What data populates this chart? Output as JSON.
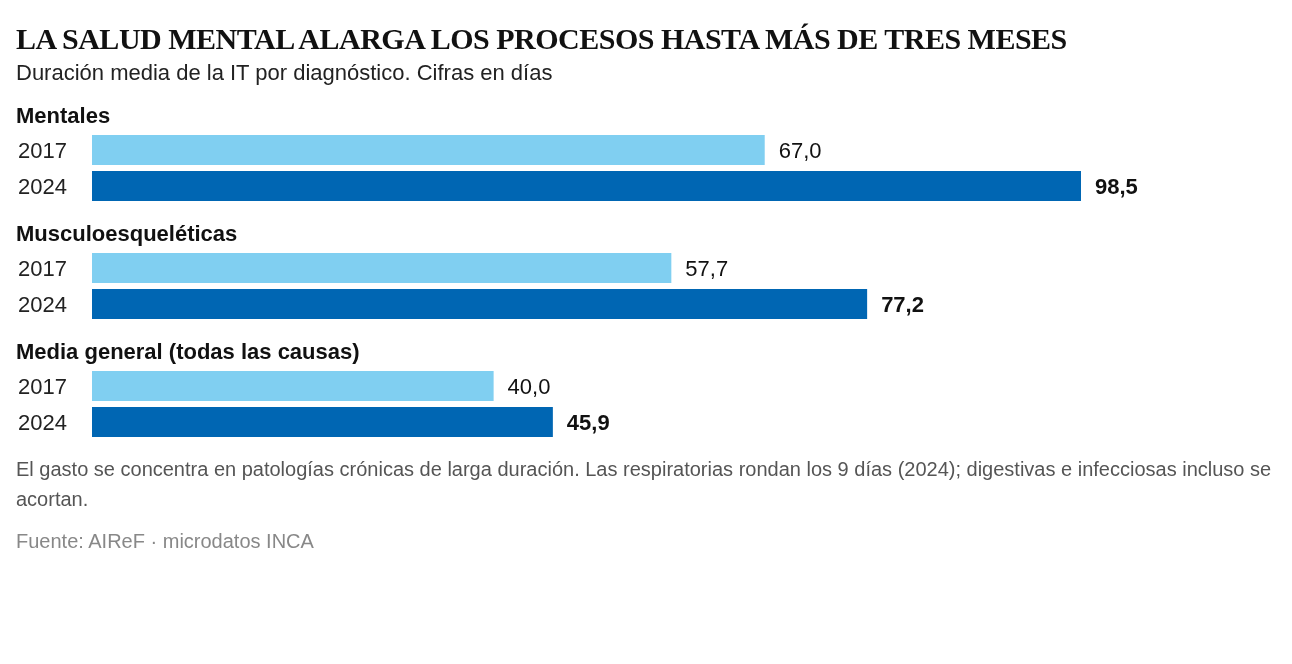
{
  "chart_data": {
    "type": "bar",
    "orientation": "horizontal",
    "title": "LA SALUD MENTAL ALARGA LOS PROCESOS HASTA MÁS DE TRES MESES",
    "subtitle": "Duración media de la IT por diagnóstico. Cifras en días",
    "categories": [
      "Mentales",
      "Musculoesqueléticas",
      "Media general (todas las causas)"
    ],
    "series": [
      {
        "name": "2017",
        "color": "#80cff1",
        "values": [
          67.0,
          57.7,
          40.0
        ],
        "value_labels": [
          "67,0",
          "57,7",
          "40,0"
        ]
      },
      {
        "name": "2024",
        "color": "#0066b3",
        "values": [
          98.5,
          77.2,
          45.9
        ],
        "value_labels": [
          "98,5",
          "77,2",
          "45,9"
        ]
      }
    ],
    "annotations": [
      "El gasto se concentra en patologías crónicas de larga duración. Las respiratorias rondan los 9 días (2024); digestivas e infecciosas incluso se acortan.",
      "Fuente: AIReF · microdatos INCA"
    ]
  }
}
